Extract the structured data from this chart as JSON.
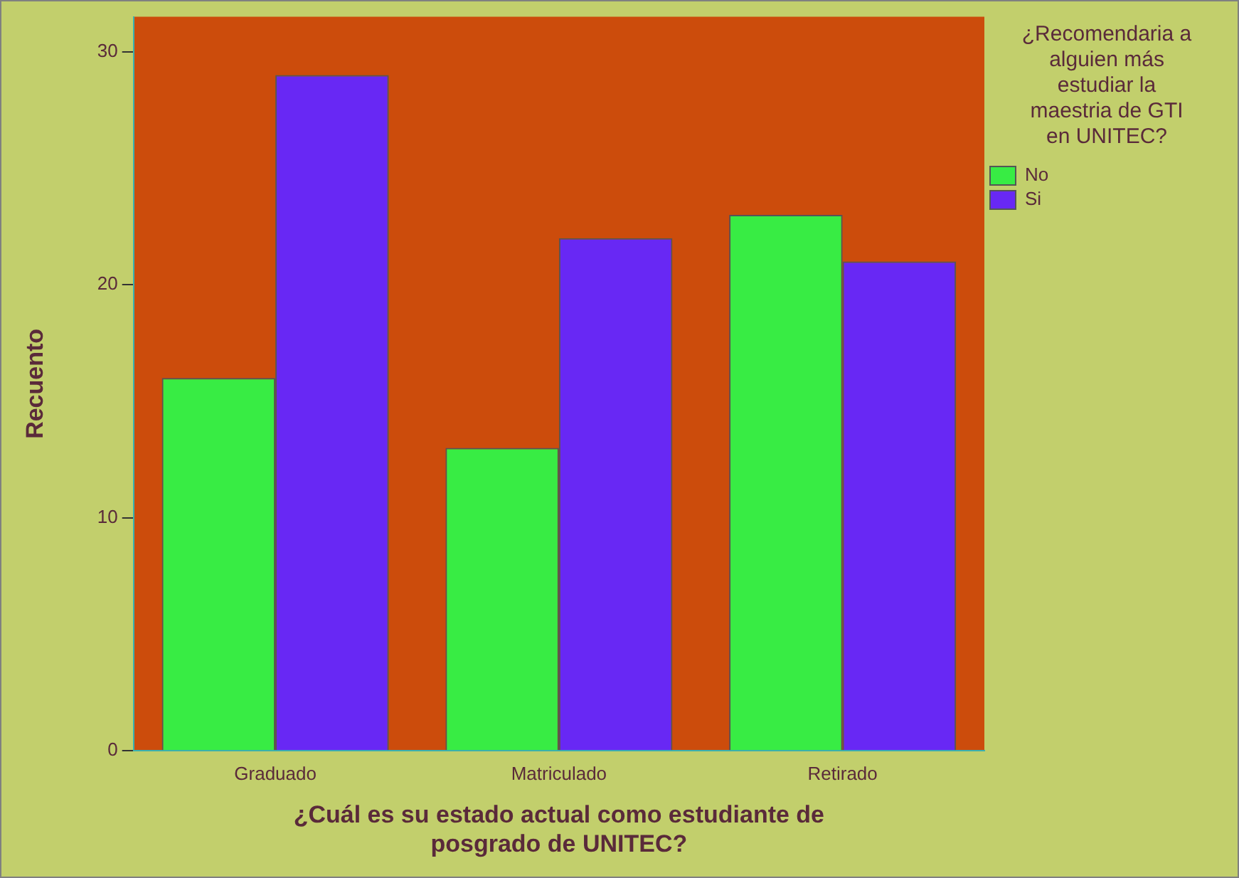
{
  "chart_data": {
    "type": "bar",
    "xlabel": "¿Cuál es su estado actual como estudiante de posgrado de UNITEC?",
    "ylabel": "Recuento",
    "legend_title": "¿Recomendaria a alguien más estudiar la maestria de GTI en UNITEC?",
    "categories": [
      "Graduado",
      "Matriculado",
      "Retirado"
    ],
    "series": [
      {
        "name": "No",
        "color": "#38ec44",
        "values": [
          16,
          13,
          23
        ]
      },
      {
        "name": "Si",
        "color": "#6828f4",
        "values": [
          29,
          22,
          21
        ]
      }
    ],
    "ylim": [
      0,
      31.5
    ],
    "yticks": [
      0,
      10,
      20,
      30
    ],
    "grid": false,
    "legend": "right"
  }
}
